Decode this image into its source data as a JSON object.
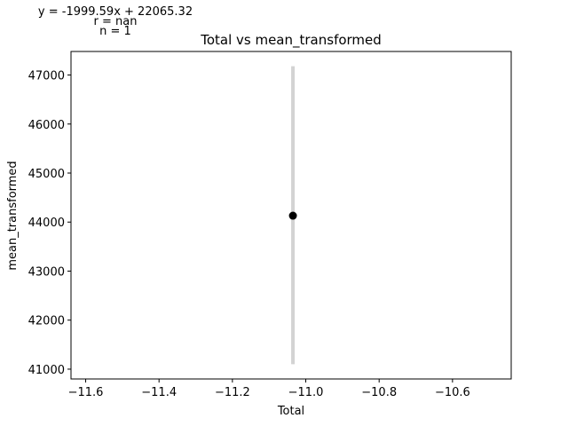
{
  "chart_data": {
    "type": "scatter",
    "title": "Total vs mean_transformed",
    "xlabel": "Total",
    "ylabel": "mean_transformed",
    "xlim": [
      -11.64,
      -10.44
    ],
    "ylim": [
      40800,
      47480
    ],
    "xticks": [
      -11.6,
      -11.4,
      -11.2,
      -11.0,
      -10.8,
      -10.6
    ],
    "yticks": [
      41000,
      42000,
      43000,
      44000,
      45000,
      46000,
      47000
    ],
    "xtick_labels": [
      "−11.6",
      "−11.4",
      "−11.2",
      "−11.0",
      "−10.8",
      "−10.6"
    ],
    "ytick_labels": [
      "41000",
      "42000",
      "43000",
      "44000",
      "45000",
      "46000",
      "47000"
    ],
    "points": [
      {
        "x": -11.035,
        "y": 44130,
        "err_low": 41100,
        "err_high": 47180
      }
    ],
    "annotations": {
      "equation": "y = -1999.59x + 22065.32",
      "r": "r = nan",
      "n": "n = 1"
    },
    "colors": {
      "point": "#000000",
      "errorbar": "#d3d3d3"
    },
    "grid": false
  }
}
